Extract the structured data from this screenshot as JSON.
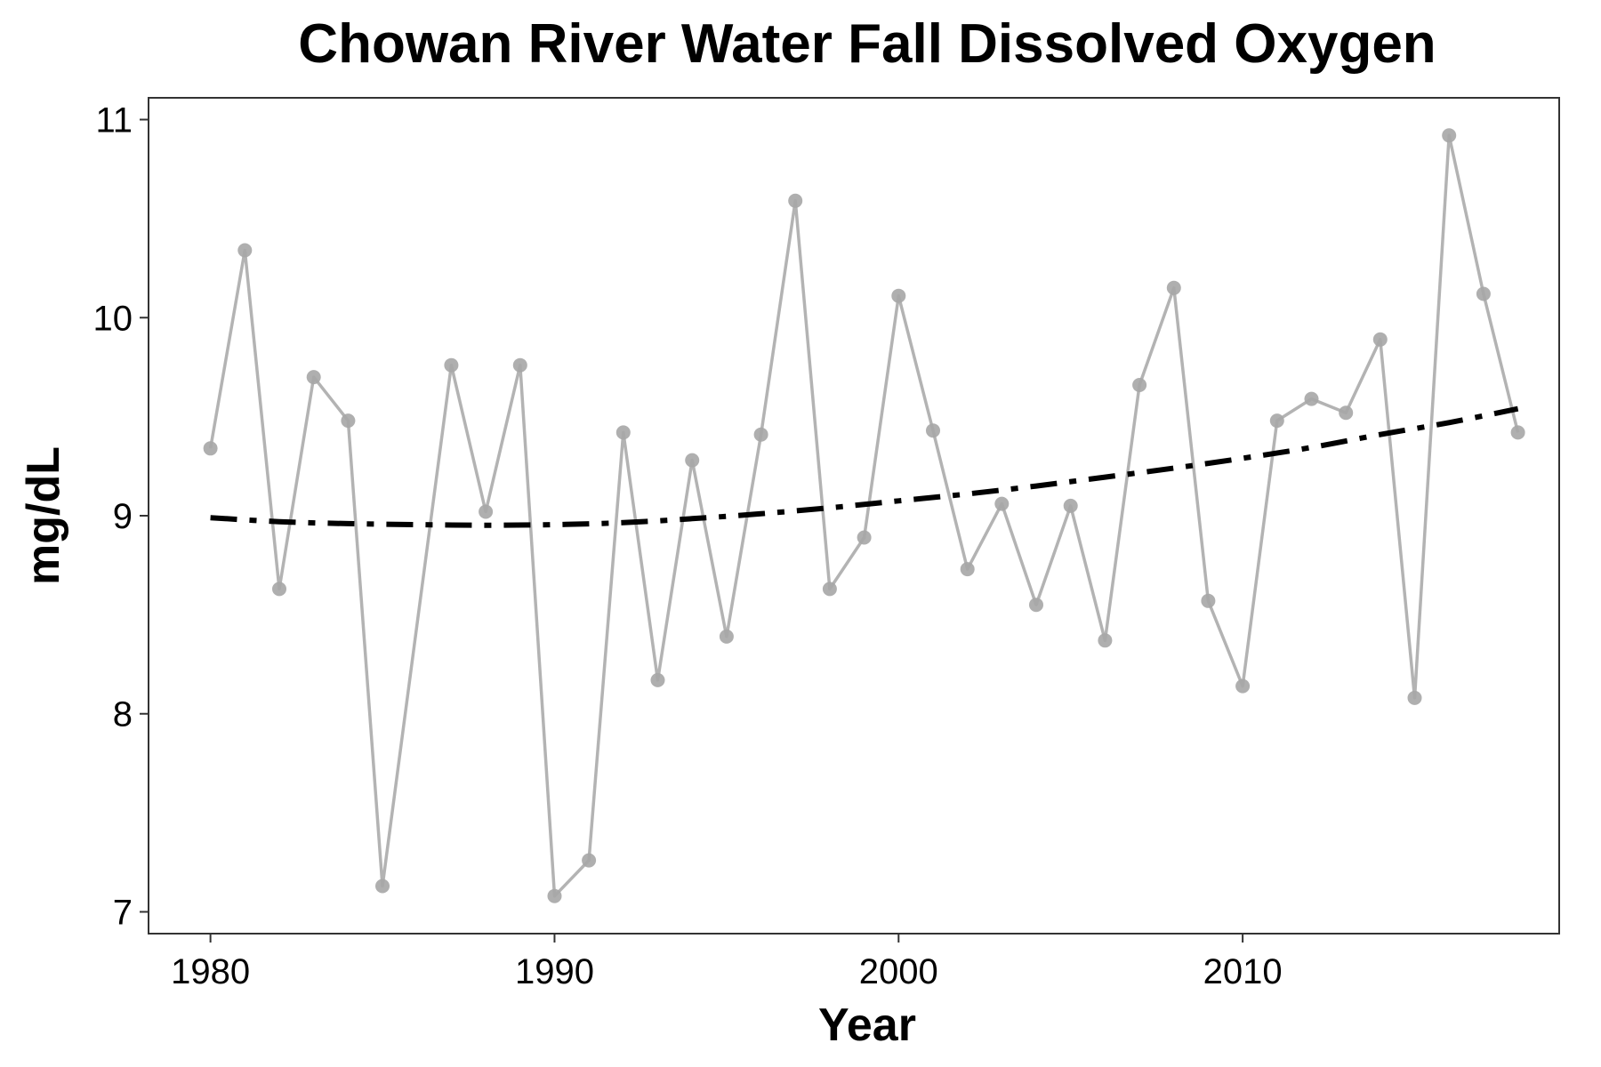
{
  "chart_data": {
    "type": "line",
    "title": "Chowan River Water Fall Dissolved Oxygen",
    "xlabel": "Year",
    "ylabel": "mg/dL",
    "xlim": [
      1978.2,
      2019.2
    ],
    "ylim": [
      6.89,
      11.11
    ],
    "x_ticks": [
      1980,
      1990,
      2000,
      2010
    ],
    "y_ticks": [
      7,
      8,
      9,
      10,
      11
    ],
    "grid": false,
    "legend": "none",
    "series": [
      {
        "style": "observed",
        "color": "#a6a6a6",
        "x": [
          1980,
          1981,
          1982,
          1983,
          1984,
          1985,
          1987,
          1988,
          1989,
          1990,
          1991,
          1992,
          1993,
          1994,
          1995,
          1996,
          1997,
          1998,
          1999,
          2000,
          2001,
          2002,
          2003,
          2004,
          2005,
          2006,
          2007,
          2008,
          2009,
          2010,
          2011,
          2012,
          2013,
          2014,
          2015,
          2016,
          2017,
          2018
        ],
        "values": [
          9.34,
          10.34,
          8.63,
          9.7,
          9.48,
          7.13,
          9.76,
          9.02,
          9.76,
          7.08,
          7.26,
          9.42,
          8.17,
          9.28,
          8.39,
          9.41,
          10.59,
          8.63,
          8.89,
          10.11,
          9.43,
          8.73,
          9.06,
          8.55,
          9.05,
          8.37,
          9.66,
          10.15,
          8.57,
          8.14,
          9.48,
          9.59,
          9.52,
          9.89,
          8.08,
          10.92,
          10.12,
          9.42
        ]
      },
      {
        "style": "trend",
        "color": "#000000",
        "x": [
          1980,
          1982,
          1984,
          1986,
          1988,
          1990,
          1992,
          1994,
          1996,
          1998,
          2000,
          2002,
          2004,
          2006,
          2008,
          2010,
          2012,
          2014,
          2016,
          2018
        ],
        "values": [
          8.99,
          8.97,
          8.96,
          8.955,
          8.952,
          8.955,
          8.965,
          8.985,
          9.01,
          9.04,
          9.075,
          9.11,
          9.15,
          9.195,
          9.24,
          9.29,
          9.345,
          9.41,
          9.47,
          9.54
        ]
      }
    ]
  }
}
